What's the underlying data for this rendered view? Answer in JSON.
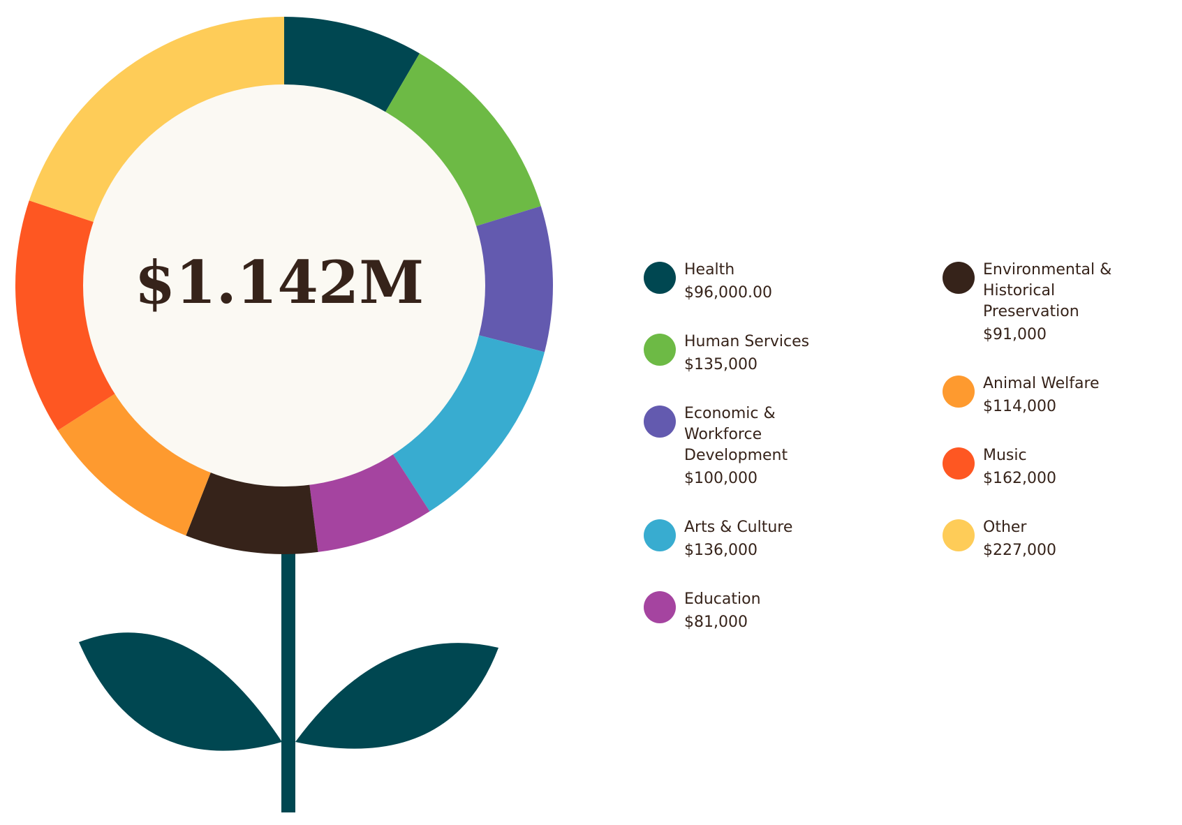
{
  "chart_data": {
    "type": "donut",
    "center_label": "$1.142M",
    "categories": [
      "Health",
      "Human Services",
      "Economic & Workforce Development",
      "Arts & Culture",
      "Education",
      "Environmental & Historical Preservation",
      "Animal Welfare",
      "Music",
      "Other"
    ],
    "values": [
      96000,
      135000,
      100000,
      136000,
      81000,
      91000,
      114000,
      162000,
      227000
    ],
    "value_labels": [
      "$96,000.00",
      "$135,000",
      "$100,000",
      "$136,000",
      "$81,000",
      "$91,000",
      "$114,000",
      "$162,000",
      "$227,000"
    ],
    "colors": [
      "#004751",
      "#6dba45",
      "#635aaf",
      "#38acd0",
      "#a544a0",
      "#36231a",
      "#fe9a2f",
      "#fe5722",
      "#fecc58"
    ]
  }
}
